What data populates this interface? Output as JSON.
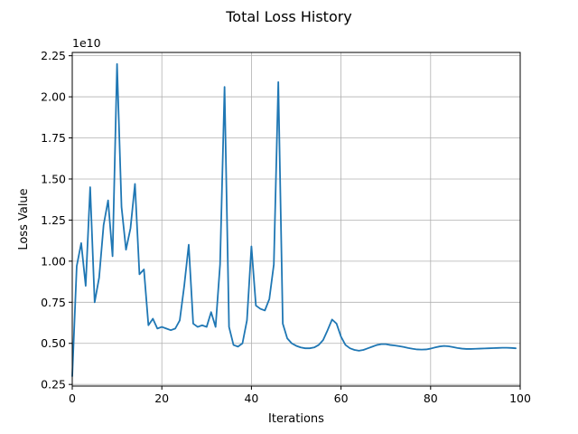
{
  "chart_data": {
    "type": "line",
    "title": "Total Loss History",
    "xlabel": "Iterations",
    "ylabel": "Loss Value",
    "y_offset_label": "1e10",
    "xlim": [
      0,
      100
    ],
    "ylim": [
      0.24,
      2.27
    ],
    "x_scale_factor": 1,
    "grid": true,
    "x_ticks": [
      0,
      20,
      40,
      60,
      80,
      100
    ],
    "x_tick_labels": [
      "0",
      "20",
      "40",
      "60",
      "80",
      "100"
    ],
    "y_ticks": [
      0.25,
      0.5,
      0.75,
      1.0,
      1.25,
      1.5,
      1.75,
      2.0,
      2.25
    ],
    "y_tick_labels": [
      "0.25",
      "0.50",
      "0.75",
      "1.00",
      "1.25",
      "1.50",
      "1.75",
      "2.00",
      "2.25"
    ],
    "series": [
      {
        "color": "#1f77b4",
        "x": [
          0,
          1,
          2,
          3,
          4,
          5,
          6,
          7,
          8,
          9,
          10,
          11,
          12,
          13,
          14,
          15,
          16,
          17,
          18,
          19,
          20,
          21,
          22,
          23,
          24,
          25,
          26,
          27,
          28,
          29,
          30,
          31,
          32,
          33,
          34,
          35,
          36,
          37,
          38,
          39,
          40,
          41,
          42,
          43,
          44,
          45,
          46,
          47,
          48,
          49,
          50,
          51,
          52,
          53,
          54,
          55,
          56,
          57,
          58,
          59,
          60,
          61,
          62,
          63,
          64,
          65,
          66,
          67,
          68,
          69,
          70,
          71,
          72,
          73,
          74,
          75,
          76,
          77,
          78,
          79,
          80,
          81,
          82,
          83,
          84,
          85,
          86,
          87,
          88,
          89,
          90,
          91,
          92,
          93,
          94,
          95,
          96,
          97,
          98,
          99
        ],
        "values": [
          0.3,
          0.97,
          1.11,
          0.85,
          1.45,
          0.75,
          0.9,
          1.22,
          1.37,
          1.03,
          2.2,
          1.33,
          1.07,
          1.2,
          1.47,
          0.92,
          0.95,
          0.61,
          0.65,
          0.59,
          0.6,
          0.59,
          0.58,
          0.59,
          0.64,
          0.85,
          1.1,
          0.62,
          0.6,
          0.61,
          0.6,
          0.69,
          0.6,
          0.98,
          2.06,
          0.6,
          0.49,
          0.48,
          0.5,
          0.64,
          1.09,
          0.73,
          0.71,
          0.7,
          0.77,
          0.98,
          2.09,
          0.62,
          0.53,
          0.5,
          0.485,
          0.475,
          0.47,
          0.47,
          0.475,
          0.49,
          0.52,
          0.58,
          0.645,
          0.62,
          0.54,
          0.49,
          0.47,
          0.46,
          0.455,
          0.46,
          0.47,
          0.48,
          0.49,
          0.495,
          0.495,
          0.49,
          0.487,
          0.483,
          0.478,
          0.472,
          0.467,
          0.463,
          0.462,
          0.463,
          0.468,
          0.475,
          0.481,
          0.484,
          0.482,
          0.477,
          0.472,
          0.468,
          0.466,
          0.466,
          0.467,
          0.468,
          0.469,
          0.47,
          0.471,
          0.472,
          0.473,
          0.473,
          0.472,
          0.47
        ]
      }
    ]
  }
}
